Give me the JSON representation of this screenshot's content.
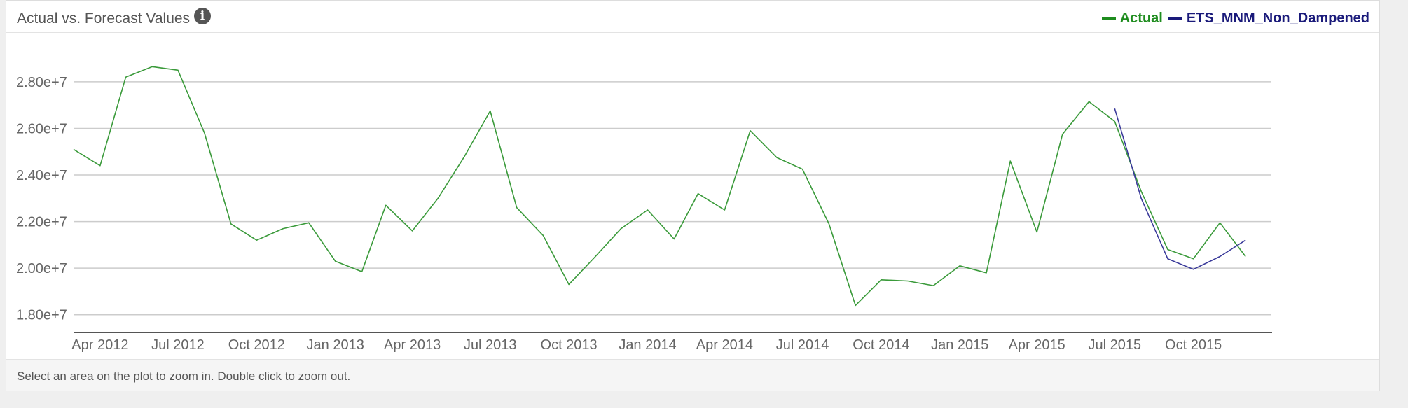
{
  "panel": {
    "title": "Actual vs. Forecast Values",
    "info_icon": "info-circle-icon",
    "footer_hint": "Select an area on the plot to zoom in. Double click to zoom out."
  },
  "chart_data": {
    "type": "line",
    "title": "Actual vs. Forecast Values",
    "xlabel": "",
    "ylabel": "",
    "ylim": [
      17300000,
      29500000
    ],
    "xlim": [
      "2012-03-01",
      "2016-01-01"
    ],
    "grid": true,
    "legend_position": "top-right",
    "y_ticks": [
      18000000,
      20000000,
      22000000,
      24000000,
      26000000,
      28000000
    ],
    "y_tick_labels": [
      "1.80e+7",
      "2.00e+7",
      "2.20e+7",
      "2.40e+7",
      "2.60e+7",
      "2.80e+7"
    ],
    "x_ticks": [
      "2012-04-01",
      "2012-07-01",
      "2012-10-01",
      "2013-01-01",
      "2013-04-01",
      "2013-07-01",
      "2013-10-01",
      "2014-01-01",
      "2014-04-01",
      "2014-07-01",
      "2014-10-01",
      "2015-01-01",
      "2015-04-01",
      "2015-07-01",
      "2015-10-01"
    ],
    "x_tick_labels": [
      "Apr 2012",
      "Jul 2012",
      "Oct 2012",
      "Jan 2013",
      "Apr 2013",
      "Jul 2013",
      "Oct 2013",
      "Jan 2014",
      "Apr 2014",
      "Jul 2014",
      "Oct 2014",
      "Jan 2015",
      "Apr 2015",
      "Jul 2015",
      "Oct 2015"
    ],
    "series": [
      {
        "name": "Actual",
        "color": "#3a9a3a",
        "legend_color": "#1e8c1e",
        "x": [
          "2012-03-01",
          "2012-04-01",
          "2012-05-01",
          "2012-06-01",
          "2012-07-01",
          "2012-08-01",
          "2012-09-01",
          "2012-10-01",
          "2012-11-01",
          "2012-12-01",
          "2013-01-01",
          "2013-02-01",
          "2013-03-01",
          "2013-04-01",
          "2013-05-01",
          "2013-06-01",
          "2013-07-01",
          "2013-08-01",
          "2013-09-01",
          "2013-10-01",
          "2013-11-01",
          "2013-12-01",
          "2014-01-01",
          "2014-02-01",
          "2014-03-01",
          "2014-04-01",
          "2014-05-01",
          "2014-06-01",
          "2014-07-01",
          "2014-08-01",
          "2014-09-01",
          "2014-10-01",
          "2014-11-01",
          "2014-12-01",
          "2015-01-01",
          "2015-02-01",
          "2015-03-01",
          "2015-04-01",
          "2015-05-01",
          "2015-06-01",
          "2015-07-01",
          "2015-08-01",
          "2015-09-01",
          "2015-10-01",
          "2015-11-01",
          "2015-12-01"
        ],
        "values": [
          25100000,
          24400000,
          28200000,
          28650000,
          28500000,
          25800000,
          21900000,
          21200000,
          21700000,
          21950000,
          20300000,
          19850000,
          22700000,
          21600000,
          23000000,
          24800000,
          26750000,
          22600000,
          21400000,
          19300000,
          20500000,
          21700000,
          22500000,
          21250000,
          23200000,
          22500000,
          25900000,
          24750000,
          24250000,
          21900000,
          18400000,
          19500000,
          19450000,
          19250000,
          20100000,
          19800000,
          24600000,
          21550000,
          25750000,
          27150000,
          26300000,
          23300000,
          20800000,
          20400000,
          21950000,
          20500000
        ]
      },
      {
        "name": "ETS_MNM_Non_Dampened",
        "color": "#3a3a9a",
        "legend_color": "#1a1a7a",
        "x": [
          "2015-07-01",
          "2015-08-01",
          "2015-09-01",
          "2015-10-01",
          "2015-11-01",
          "2015-12-01"
        ],
        "values": [
          26850000,
          23000000,
          20400000,
          19950000,
          20500000,
          21200000
        ]
      }
    ]
  }
}
